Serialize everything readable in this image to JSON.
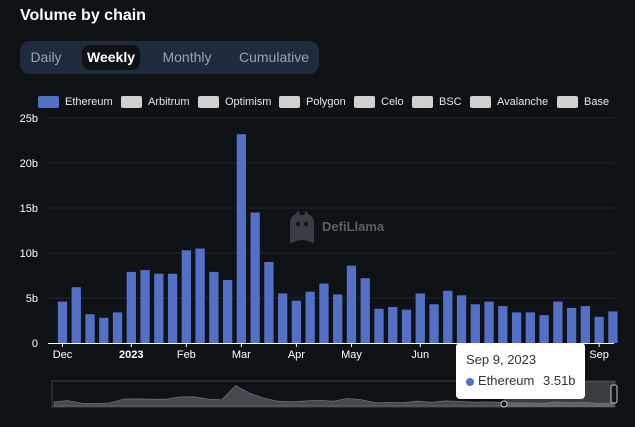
{
  "title": "Volume by chain",
  "tabs": [
    {
      "label": "Daily",
      "active": false
    },
    {
      "label": "Weekly",
      "active": true
    },
    {
      "label": "Monthly",
      "active": false
    },
    {
      "label": "Cumulative",
      "active": false
    }
  ],
  "colors": {
    "ethereum": "#5470c6",
    "inactive_legend": "#d0d0d0",
    "grid": "#23272c",
    "axis_text": "#ffffff"
  },
  "legend": [
    "Ethereum",
    "Arbitrum",
    "Optimism",
    "Polygon",
    "Celo",
    "BSC",
    "Avalanche",
    "Base"
  ],
  "watermark": "DefiLlama",
  "tooltip": {
    "date": "Sep 9, 2023",
    "series": "Ethereum",
    "value": "3.51b"
  },
  "chart_data": {
    "type": "bar",
    "title": "Volume by chain",
    "series": [
      {
        "name": "Ethereum",
        "values": [
          4.6,
          6.2,
          3.2,
          2.8,
          3.4,
          7.9,
          8.1,
          7.7,
          7.7,
          10.3,
          10.5,
          7.9,
          7.0,
          23.2,
          14.5,
          9.0,
          5.5,
          4.7,
          5.7,
          6.6,
          5.4,
          8.6,
          7.2,
          3.8,
          4.0,
          3.7,
          5.5,
          4.3,
          5.8,
          5.3,
          4.3,
          4.6,
          4.1,
          3.4,
          3.4,
          3.1,
          4.6,
          3.9,
          4.1,
          2.9,
          3.51
        ]
      }
    ],
    "x_tick_labels": [
      {
        "label": "Dec",
        "index": 0,
        "bold": false
      },
      {
        "label": "2023",
        "index": 5,
        "bold": true
      },
      {
        "label": "Feb",
        "index": 9,
        "bold": false
      },
      {
        "label": "Mar",
        "index": 13,
        "bold": false
      },
      {
        "label": "Apr",
        "index": 17,
        "bold": false
      },
      {
        "label": "May",
        "index": 21,
        "bold": false
      },
      {
        "label": "Jun",
        "index": 26,
        "bold": false
      },
      {
        "label": "Sep",
        "index": 39,
        "bold": false
      }
    ],
    "y_ticks": [
      "0",
      "5b",
      "10b",
      "15b",
      "20b",
      "25b"
    ],
    "ylim": [
      0,
      25
    ],
    "ytick_step": 5,
    "legend_position": "top-left",
    "grid": true
  }
}
